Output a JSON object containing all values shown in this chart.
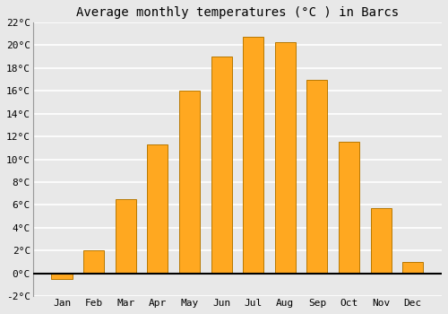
{
  "months": [
    "Jan",
    "Feb",
    "Mar",
    "Apr",
    "May",
    "Jun",
    "Jul",
    "Aug",
    "Sep",
    "Oct",
    "Nov",
    "Dec"
  ],
  "temperatures": [
    -0.5,
    2.0,
    6.5,
    11.3,
    16.0,
    19.0,
    20.7,
    20.3,
    17.0,
    11.5,
    5.7,
    1.0
  ],
  "bar_color": "#FFA820",
  "bar_edge_color": "#B87800",
  "title": "Average monthly temperatures (°C ) in Barcs",
  "ylim": [
    -2,
    22
  ],
  "yticks": [
    -2,
    0,
    2,
    4,
    6,
    8,
    10,
    12,
    14,
    16,
    18,
    20,
    22
  ],
  "ytick_labels": [
    "-2°C",
    "0°C",
    "2°C",
    "4°C",
    "6°C",
    "8°C",
    "10°C",
    "12°C",
    "14°C",
    "16°C",
    "18°C",
    "20°C",
    "22°C"
  ],
  "background_color": "#e8e8e8",
  "grid_color": "#ffffff",
  "title_fontsize": 10,
  "tick_fontsize": 8
}
